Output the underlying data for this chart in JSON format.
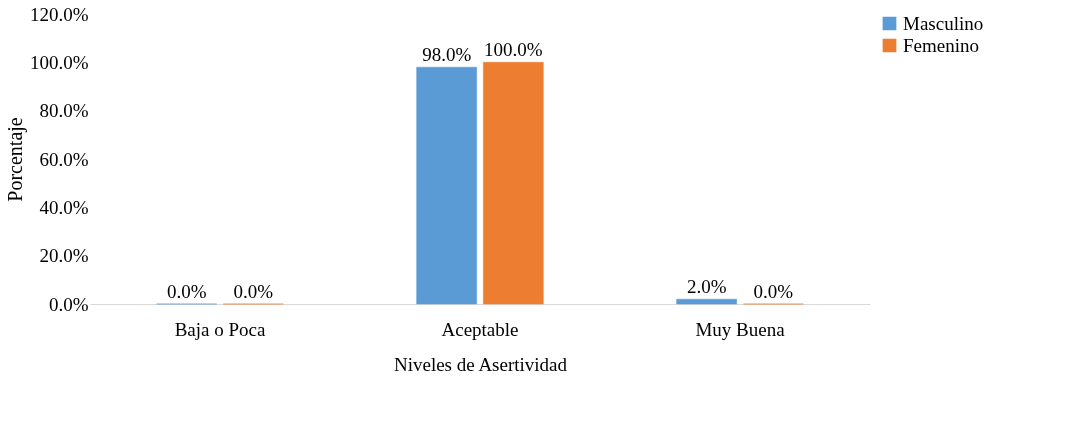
{
  "chart_data": {
    "type": "bar",
    "xlabel": "Niveles de Asertividad",
    "ylabel": "Porcentaje",
    "categories": [
      "Baja o Poca",
      "Aceptable",
      "Muy Buena"
    ],
    "series": [
      {
        "name": "Masculino",
        "color": "#5b9bd5",
        "values": [
          0,
          98,
          2
        ],
        "value_labels": [
          "0.0%",
          "98.0%",
          "2.0%"
        ]
      },
      {
        "name": "Femenino",
        "color": "#ed7d31",
        "values": [
          0,
          100,
          0
        ],
        "value_labels": [
          "0.0%",
          "100.0%",
          "0.0%"
        ]
      }
    ],
    "ylim": [
      0,
      120
    ],
    "yticks": [
      {
        "value": 0,
        "label": "0.0%"
      },
      {
        "value": 20,
        "label": "20.0%"
      },
      {
        "value": 40,
        "label": "40.0%"
      },
      {
        "value": 60,
        "label": "60.0%"
      },
      {
        "value": 80,
        "label": "80.0%"
      },
      {
        "value": 100,
        "label": "100.0%"
      },
      {
        "value": 120,
        "label": "120.0%"
      }
    ],
    "grid": false,
    "legend": "right"
  }
}
